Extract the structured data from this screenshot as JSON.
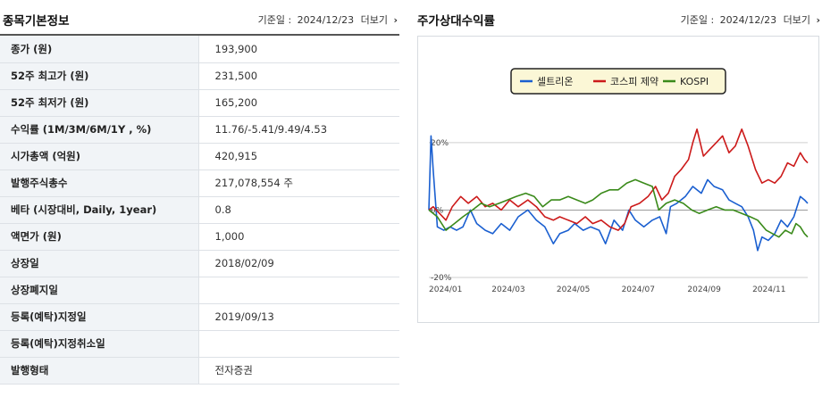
{
  "left_panel": {
    "title": "종목기본정보",
    "date_label": "기준일 :",
    "date": "2024/12/23",
    "more_label": "더보기",
    "rows": [
      {
        "label": "종가 (원)",
        "value": "193,900"
      },
      {
        "label": "52주 최고가 (원)",
        "value": "231,500"
      },
      {
        "label": "52주 최저가 (원)",
        "value": "165,200"
      },
      {
        "label": "수익률 (1M/3M/6M/1Y , %)",
        "value": "11.76/-5.41/9.49/4.53"
      },
      {
        "label": "시가총액 (억원)",
        "value": "420,915"
      },
      {
        "label": "발행주식총수",
        "value": "217,078,554 주"
      },
      {
        "label": "베타 (시장대비, Daily, 1year)",
        "value": "0.8"
      },
      {
        "label": "액면가 (원)",
        "value": "1,000"
      },
      {
        "label": "상장일",
        "value": "2018/02/09"
      },
      {
        "label": "상장폐지일",
        "value": ""
      },
      {
        "label": "등록(예탁)지정일",
        "value": "2019/09/13"
      },
      {
        "label": "등록(예탁)지정취소일",
        "value": ""
      },
      {
        "label": "발행형태",
        "value": "전자증권"
      }
    ]
  },
  "right_panel": {
    "title": "주가상대수익률",
    "date_label": "기준일 :",
    "date": "2024/12/23",
    "more_label": "더보기"
  },
  "chart_data": {
    "type": "line",
    "title": "",
    "xlabel": "",
    "ylabel": "",
    "x_range": [
      "2024-01-02",
      "2024-12-23"
    ],
    "x_ticks": [
      "2024/01",
      "2024/03",
      "2024/05",
      "2024/07",
      "2024/09",
      "2024/11"
    ],
    "y_ticks": [
      "20%",
      "0%",
      "-20%"
    ],
    "ylim": [
      -20,
      25
    ],
    "grid": true,
    "legend_position": "top-center",
    "series": [
      {
        "name": "셀트리온",
        "color": "#1a5fd0",
        "points": [
          [
            "2024-01-02",
            0
          ],
          [
            "2024-01-04",
            22
          ],
          [
            "2024-01-06",
            12
          ],
          [
            "2024-01-10",
            -5
          ],
          [
            "2024-01-16",
            -6
          ],
          [
            "2024-01-22",
            -5
          ],
          [
            "2024-01-28",
            -6
          ],
          [
            "2024-02-03",
            -5
          ],
          [
            "2024-02-10",
            0
          ],
          [
            "2024-02-16",
            -4
          ],
          [
            "2024-02-24",
            -6
          ],
          [
            "2024-03-02",
            -7
          ],
          [
            "2024-03-10",
            -4
          ],
          [
            "2024-03-18",
            -6
          ],
          [
            "2024-03-26",
            -2
          ],
          [
            "2024-04-04",
            0
          ],
          [
            "2024-04-12",
            -3
          ],
          [
            "2024-04-20",
            -5
          ],
          [
            "2024-04-28",
            -10
          ],
          [
            "2024-05-04",
            -7
          ],
          [
            "2024-05-12",
            -6
          ],
          [
            "2024-05-18",
            -4
          ],
          [
            "2024-05-26",
            -6
          ],
          [
            "2024-06-02",
            -5
          ],
          [
            "2024-06-10",
            -6
          ],
          [
            "2024-06-16",
            -10
          ],
          [
            "2024-06-24",
            -3
          ],
          [
            "2024-07-02",
            -6
          ],
          [
            "2024-07-08",
            0
          ],
          [
            "2024-07-14",
            -3
          ],
          [
            "2024-07-22",
            -5
          ],
          [
            "2024-07-30",
            -3
          ],
          [
            "2024-08-06",
            -2
          ],
          [
            "2024-08-12",
            -7
          ],
          [
            "2024-08-16",
            1
          ],
          [
            "2024-08-22",
            2
          ],
          [
            "2024-08-30",
            4
          ],
          [
            "2024-09-06",
            7
          ],
          [
            "2024-09-14",
            5
          ],
          [
            "2024-09-20",
            9
          ],
          [
            "2024-09-26",
            7
          ],
          [
            "2024-10-04",
            6
          ],
          [
            "2024-10-10",
            3
          ],
          [
            "2024-10-16",
            2
          ],
          [
            "2024-10-22",
            1
          ],
          [
            "2024-10-28",
            -2
          ],
          [
            "2024-11-02",
            -6
          ],
          [
            "2024-11-06",
            -12
          ],
          [
            "2024-11-10",
            -8
          ],
          [
            "2024-11-16",
            -9
          ],
          [
            "2024-11-22",
            -7
          ],
          [
            "2024-11-28",
            -3
          ],
          [
            "2024-12-04",
            -5
          ],
          [
            "2024-12-10",
            -2
          ],
          [
            "2024-12-16",
            4
          ],
          [
            "2024-12-20",
            3
          ],
          [
            "2024-12-23",
            2
          ]
        ]
      },
      {
        "name": "코스피 제약",
        "color": "#cc1a1a",
        "points": [
          [
            "2024-01-02",
            0
          ],
          [
            "2024-01-06",
            1
          ],
          [
            "2024-01-12",
            -1
          ],
          [
            "2024-01-18",
            -3
          ],
          [
            "2024-01-24",
            1
          ],
          [
            "2024-02-01",
            4
          ],
          [
            "2024-02-08",
            2
          ],
          [
            "2024-02-16",
            4
          ],
          [
            "2024-02-24",
            1
          ],
          [
            "2024-03-02",
            2
          ],
          [
            "2024-03-10",
            0
          ],
          [
            "2024-03-18",
            3
          ],
          [
            "2024-03-26",
            1
          ],
          [
            "2024-04-04",
            3
          ],
          [
            "2024-04-12",
            1
          ],
          [
            "2024-04-20",
            -2
          ],
          [
            "2024-04-28",
            -3
          ],
          [
            "2024-05-04",
            -2
          ],
          [
            "2024-05-12",
            -3
          ],
          [
            "2024-05-20",
            -4
          ],
          [
            "2024-05-28",
            -2
          ],
          [
            "2024-06-04",
            -4
          ],
          [
            "2024-06-12",
            -3
          ],
          [
            "2024-06-20",
            -5
          ],
          [
            "2024-06-28",
            -6
          ],
          [
            "2024-07-04",
            -4
          ],
          [
            "2024-07-10",
            1
          ],
          [
            "2024-07-18",
            2
          ],
          [
            "2024-07-26",
            4
          ],
          [
            "2024-08-02",
            7
          ],
          [
            "2024-08-08",
            3
          ],
          [
            "2024-08-14",
            5
          ],
          [
            "2024-08-20",
            10
          ],
          [
            "2024-08-26",
            12
          ],
          [
            "2024-09-02",
            15
          ],
          [
            "2024-09-06",
            20
          ],
          [
            "2024-09-10",
            24
          ],
          [
            "2024-09-16",
            16
          ],
          [
            "2024-09-22",
            18
          ],
          [
            "2024-09-28",
            20
          ],
          [
            "2024-10-04",
            22
          ],
          [
            "2024-10-10",
            17
          ],
          [
            "2024-10-16",
            19
          ],
          [
            "2024-10-22",
            24
          ],
          [
            "2024-10-28",
            19
          ],
          [
            "2024-11-04",
            12
          ],
          [
            "2024-11-10",
            8
          ],
          [
            "2024-11-16",
            9
          ],
          [
            "2024-11-22",
            8
          ],
          [
            "2024-11-28",
            10
          ],
          [
            "2024-12-04",
            14
          ],
          [
            "2024-12-10",
            13
          ],
          [
            "2024-12-16",
            17
          ],
          [
            "2024-12-20",
            15
          ],
          [
            "2024-12-23",
            14
          ]
        ]
      },
      {
        "name": "KOSPI",
        "color": "#3a8a1a",
        "points": [
          [
            "2024-01-02",
            0
          ],
          [
            "2024-01-10",
            -2
          ],
          [
            "2024-01-18",
            -6
          ],
          [
            "2024-01-26",
            -4
          ],
          [
            "2024-02-03",
            -2
          ],
          [
            "2024-02-12",
            0
          ],
          [
            "2024-02-20",
            2
          ],
          [
            "2024-02-28",
            1
          ],
          [
            "2024-03-08",
            2
          ],
          [
            "2024-03-16",
            3
          ],
          [
            "2024-03-24",
            4
          ],
          [
            "2024-04-02",
            5
          ],
          [
            "2024-04-10",
            4
          ],
          [
            "2024-04-18",
            1
          ],
          [
            "2024-04-26",
            3
          ],
          [
            "2024-05-04",
            3
          ],
          [
            "2024-05-12",
            4
          ],
          [
            "2024-05-20",
            3
          ],
          [
            "2024-05-28",
            2
          ],
          [
            "2024-06-04",
            3
          ],
          [
            "2024-06-12",
            5
          ],
          [
            "2024-06-20",
            6
          ],
          [
            "2024-06-28",
            6
          ],
          [
            "2024-07-06",
            8
          ],
          [
            "2024-07-14",
            9
          ],
          [
            "2024-07-22",
            8
          ],
          [
            "2024-07-30",
            7
          ],
          [
            "2024-08-05",
            0
          ],
          [
            "2024-08-12",
            2
          ],
          [
            "2024-08-20",
            3
          ],
          [
            "2024-08-28",
            2
          ],
          [
            "2024-09-05",
            0
          ],
          [
            "2024-09-12",
            -1
          ],
          [
            "2024-09-20",
            0
          ],
          [
            "2024-09-28",
            1
          ],
          [
            "2024-10-06",
            0
          ],
          [
            "2024-10-14",
            0
          ],
          [
            "2024-10-22",
            -1
          ],
          [
            "2024-10-30",
            -2
          ],
          [
            "2024-11-06",
            -3
          ],
          [
            "2024-11-14",
            -6
          ],
          [
            "2024-11-20",
            -7
          ],
          [
            "2024-11-26",
            -8
          ],
          [
            "2024-12-02",
            -6
          ],
          [
            "2024-12-08",
            -7
          ],
          [
            "2024-12-12",
            -4
          ],
          [
            "2024-12-16",
            -5
          ],
          [
            "2024-12-20",
            -7
          ],
          [
            "2024-12-23",
            -8
          ]
        ]
      }
    ]
  }
}
